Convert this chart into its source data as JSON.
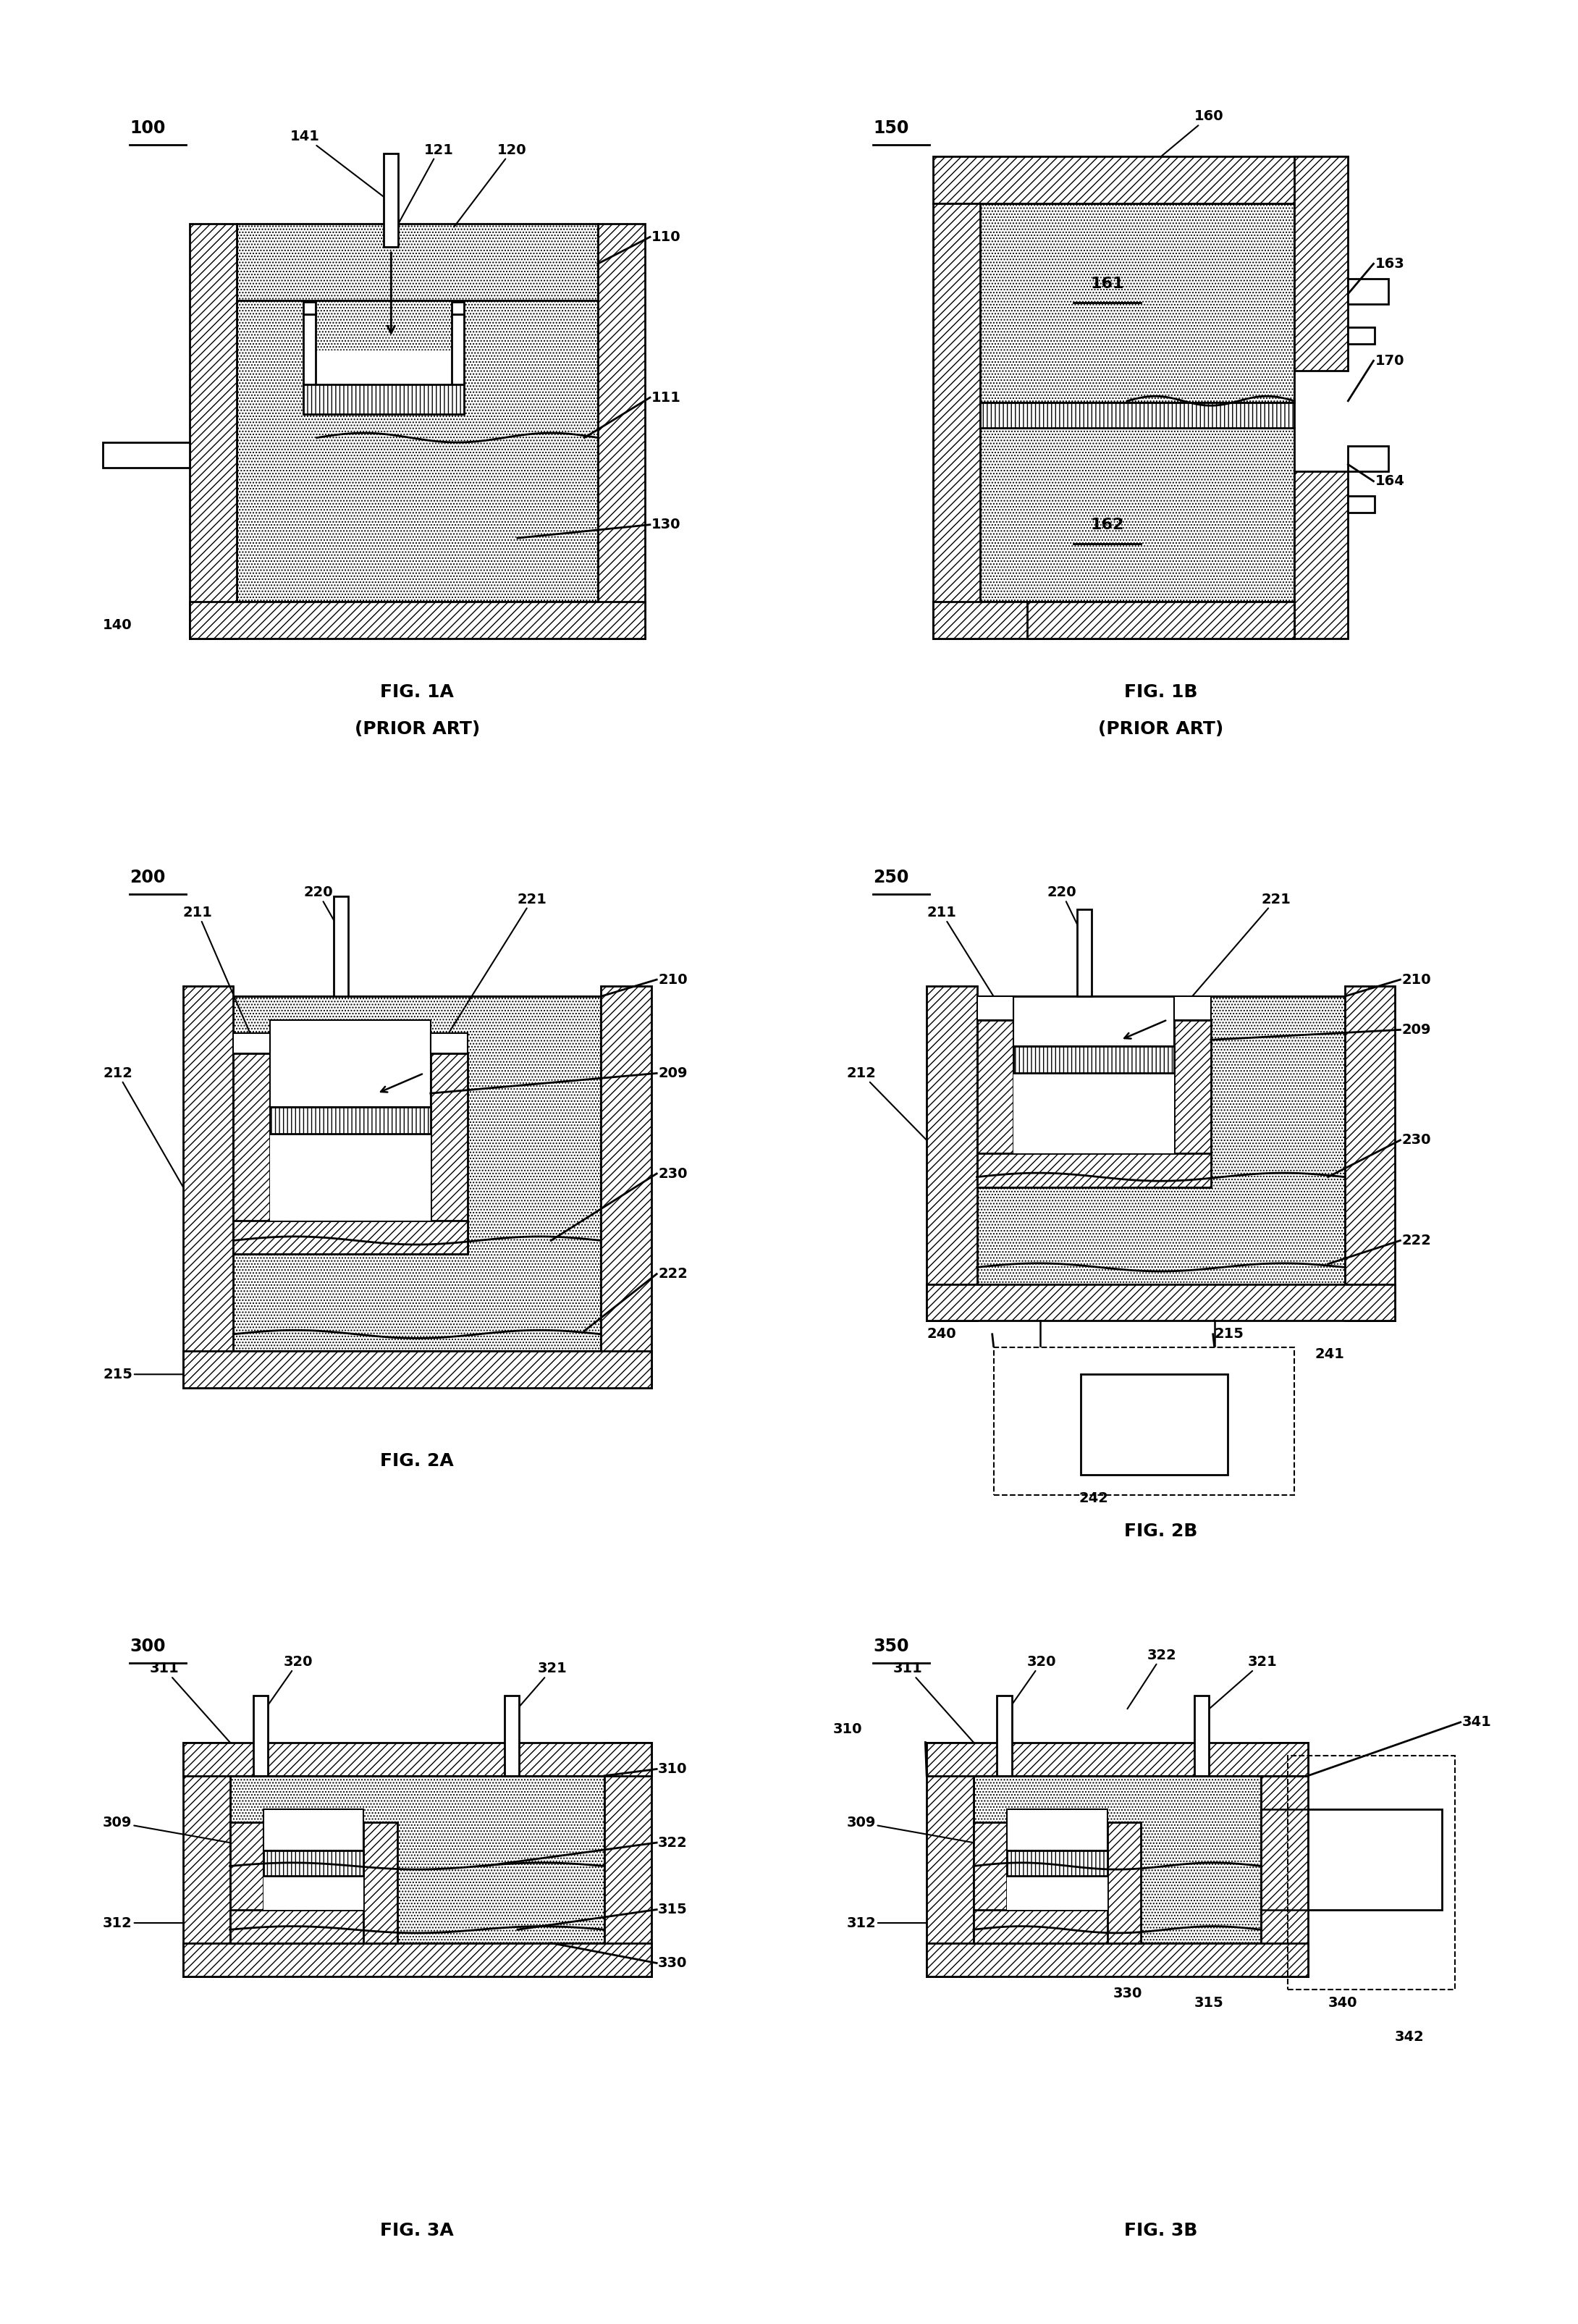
{
  "bg_color": "#ffffff",
  "lw": 2.0,
  "lw_thin": 1.5,
  "hatch_diag": "///",
  "hatch_vert": "|||",
  "hatch_dot": "....",
  "fs_label": 14,
  "fs_fig": 18,
  "fs_num": 17,
  "fs_V": 22,
  "fig1a_num": "100",
  "fig1b_num": "150",
  "fig2a_num": "200",
  "fig2b_num": "250",
  "fig3a_num": "300",
  "fig3b_num": "350",
  "fig1a_title": "FIG. 1A",
  "fig1b_title": "FIG. 1B",
  "fig2a_title": "FIG. 2A",
  "fig2b_title": "FIG. 2B",
  "fig3a_title": "FIG. 3A",
  "fig3b_title": "FIG. 3B",
  "prior_art": "(PRIOR ART)"
}
